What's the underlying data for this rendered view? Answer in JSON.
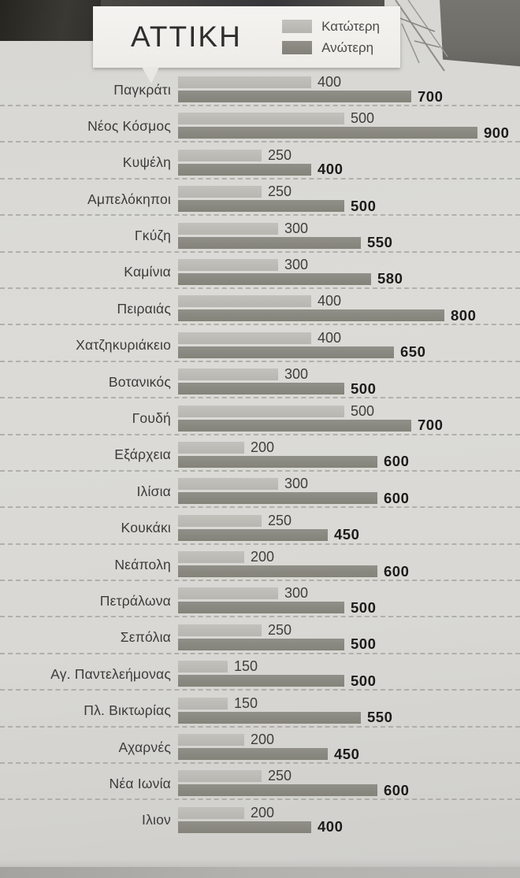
{
  "header": {
    "title": "ΑΤΤΙΚΗ",
    "legend": [
      {
        "label": "Κατώτερη",
        "color": "#bcbbb6"
      },
      {
        "label": "Ανώτερη",
        "color": "#8a897f"
      }
    ]
  },
  "chart_data": {
    "type": "bar",
    "orientation": "horizontal",
    "title": "ΑΤΤΙΚΗ",
    "legend_position": "top-right",
    "value_range": [
      0,
      900
    ],
    "bar_value_labels": true,
    "categories": [
      "Παγκράτι",
      "Νέος Κόσμος",
      "Κυψέλη",
      "Αμπελόκηποι",
      "Γκύζη",
      "Καμίνια",
      "Πειραιάς",
      "Χατζηκυριάκειο",
      "Βοτανικός",
      "Γουδή",
      "Εξάρχεια",
      "Ιλίσια",
      "Κουκάκι",
      "Νεάπολη",
      "Πετράλωνα",
      "Σεπόλια",
      "Αγ. Παντελεήμονας",
      "Πλ. Βικτωρίας",
      "Αχαρνές",
      "Νέα Ιωνία",
      "Ιλιον"
    ],
    "series": [
      {
        "name": "Κατώτερη",
        "color": "#bcbbb6",
        "values": [
          400,
          500,
          250,
          250,
          300,
          300,
          400,
          400,
          300,
          500,
          200,
          300,
          250,
          200,
          300,
          250,
          150,
          150,
          200,
          250,
          200
        ]
      },
      {
        "name": "Ανώτερη",
        "color": "#8a897f",
        "values": [
          700,
          900,
          400,
          500,
          550,
          580,
          800,
          650,
          500,
          700,
          600,
          600,
          450,
          600,
          500,
          500,
          500,
          550,
          450,
          600,
          400
        ]
      }
    ]
  },
  "colors": {
    "paper": "#d9d8d4",
    "header_card": "#f2f1ee",
    "lower_bar": "#bcbbb6",
    "upper_bar": "#8a897f",
    "lower_value_text": "#3f3e3b",
    "upper_value_text": "#1c1b19",
    "separator": "#a3a29c"
  }
}
